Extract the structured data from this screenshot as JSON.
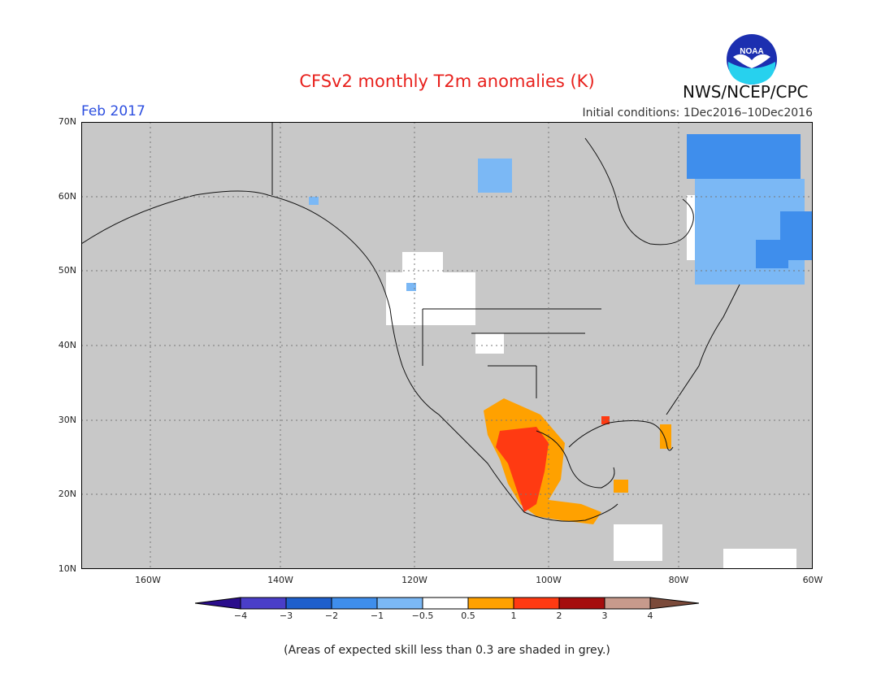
{
  "title": "CFSv2 monthly T2m anomalies (K)",
  "period": "Feb 2017",
  "initial_conditions": "Initial conditions: 1Dec2016–10Dec2016",
  "agency": "NWS/NCEP/CPC",
  "logo_text": "NOAA",
  "map": {
    "lat_labels": [
      "70N",
      "60N",
      "50N",
      "40N",
      "30N",
      "20N",
      "10N"
    ],
    "lon_labels": [
      "160W",
      "140W",
      "120W",
      "100W",
      "80W",
      "60W"
    ],
    "background_color": "#c8c8c8",
    "grid": "dotted"
  },
  "colorbar": {
    "labels": [
      "−4",
      "−3",
      "−2",
      "−1",
      "−0.5",
      "0.5",
      "1",
      "2",
      "3",
      "4"
    ],
    "colors": [
      "#2a0d8c",
      "#4a3ec8",
      "#1f5fcc",
      "#3f8eec",
      "#7bb8f5",
      "#ffffff",
      "#ffa100",
      "#ff3a12",
      "#a50d0d",
      "#c79a8c",
      "#7b4a3a"
    ]
  },
  "footnote": "(Areas of expected skill less than 0.3 are shaded in grey.)"
}
